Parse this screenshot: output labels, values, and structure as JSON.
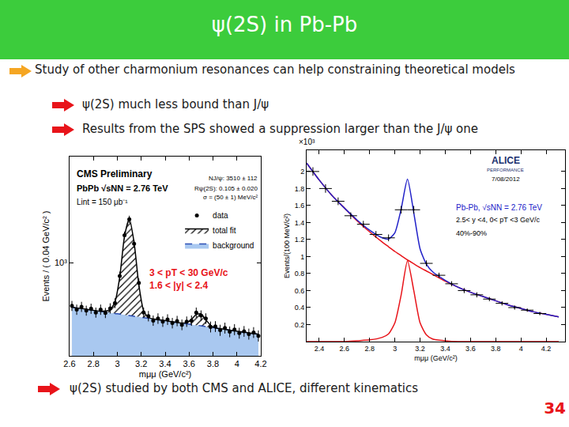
{
  "slide": {
    "title": "ψ(2S) in Pb-Pb",
    "bullets": [
      "Study of other charmonium resonances can help constraining theoretical models"
    ],
    "sub_bullets": [
      "ψ(2S) much less bound than J/ψ",
      "Results from the SPS showed a suppression larger than the J/ψ one"
    ],
    "conclusion": "ψ(2S) studied by both CMS and ALICE, different kinematics",
    "page_number": 34
  },
  "chart_data": [
    {
      "type": "scatter",
      "x_label": "mμμ (GeV/c²)",
      "y_label": "Events / ( 0.04 GeV/c² )",
      "log": "y",
      "legend": "right",
      "xlim": [
        2.6,
        4.2
      ],
      "xticks": [
        2.6,
        2.8,
        3,
        3.2,
        3.4,
        3.6,
        3.8,
        4,
        4.2
      ],
      "ylim": [
        500,
        2200
      ],
      "yticks": [
        {
          "value": 1000,
          "label": "10³"
        }
      ],
      "annotations": [
        {
          "text": "CMS Preliminary"
        },
        {
          "text": "PbPb √sNN = 2.76 TeV"
        },
        {
          "text": "Lint = 150 μb⁻¹"
        },
        {
          "text": "NJ/ψ: 3510 ± 112"
        },
        {
          "text": "Rψ(2S): 0.105 ± 0.020"
        },
        {
          "text": "σ = (50 ± 1) MeV/c²"
        },
        {
          "text": "3 < pT < 30 GeV/c",
          "color": "#e8141a"
        },
        {
          "text": "1.6 < |y| < 2.4",
          "color": "#e8141a"
        }
      ],
      "x": [
        2.62,
        2.66,
        2.7,
        2.74,
        2.78,
        2.82,
        2.86,
        2.9,
        2.94,
        2.98,
        3.02,
        3.06,
        3.1,
        3.14,
        3.18,
        3.22,
        3.26,
        3.3,
        3.34,
        3.38,
        3.42,
        3.46,
        3.5,
        3.54,
        3.58,
        3.62,
        3.66,
        3.7,
        3.74,
        3.78,
        3.82,
        3.86,
        3.9,
        3.94,
        3.98,
        4.02,
        4.06,
        4.1,
        4.14,
        4.18
      ],
      "series": [
        {
          "name": "background",
          "type": "area",
          "color": "#a9c8f0",
          "line_style": "dashed",
          "values": [
            718,
            714,
            711,
            707,
            703,
            700,
            696,
            693,
            689,
            685,
            682,
            678,
            675,
            671,
            668,
            664,
            661,
            658,
            654,
            651,
            648,
            644,
            641,
            638,
            634,
            631,
            628,
            625,
            621,
            618,
            615,
            612,
            609,
            605,
            602,
            599,
            596,
            593,
            590,
            587
          ]
        },
        {
          "name": "total fit",
          "type": "area",
          "color": "#000000",
          "line_style": "solid",
          "values": [
            718,
            714,
            711,
            707,
            703,
            700,
            696,
            698,
            704,
            746,
            898,
            1218,
            1385,
            1161,
            847,
            698,
            665,
            658,
            654,
            651,
            648,
            644,
            641,
            638,
            640,
            656,
            680,
            683,
            654,
            628,
            615,
            612,
            609,
            605,
            602,
            599,
            596,
            593,
            590,
            587
          ]
        },
        {
          "name": "data",
          "marker": "circle",
          "color": "#000000",
          "values": [
            725,
            705,
            720,
            700,
            710,
            690,
            705,
            688,
            712,
            740,
            905,
            1225,
            1380,
            1150,
            860,
            690,
            672,
            650,
            660,
            645,
            655,
            638,
            648,
            630,
            645,
            650,
            690,
            675,
            660,
            620,
            622,
            605,
            615,
            598,
            608,
            592,
            600,
            588,
            595,
            580
          ],
          "errors": [
            27,
            27,
            27,
            26,
            27,
            26,
            27,
            26,
            27,
            27,
            30,
            35,
            37,
            34,
            29,
            26,
            26,
            25,
            26,
            25,
            26,
            25,
            25,
            25,
            25,
            25,
            26,
            26,
            26,
            25,
            25,
            25,
            25,
            24,
            25,
            24,
            24,
            24,
            24,
            24
          ]
        }
      ]
    },
    {
      "type": "scatter",
      "x_label": "mμμ (GeV/c²)",
      "y_label": "Events/(100 MeV/c²)",
      "xlim": [
        2.3,
        4.35
      ],
      "xticks": [
        2.4,
        2.6,
        2.8,
        3,
        3.2,
        3.4,
        3.6,
        3.8,
        4,
        4.2
      ],
      "ylim": [
        0,
        2.25
      ],
      "yticks": [
        0.2,
        0.4,
        0.6,
        0.8,
        1,
        1.2,
        1.4,
        1.6,
        1.8,
        2
      ],
      "annotations": [
        {
          "text": "ALICE",
          "color": "#1b2f6e"
        },
        {
          "text": "PERFORMANCE",
          "color": "#1b2f6e"
        },
        {
          "text": "7/08/2012"
        },
        {
          "text": "Pb-Pb, √sNN = 2.76 TeV",
          "color": "#2020c8"
        },
        {
          "text": "2.5< y <4, 0< pT <3 GeV/c"
        },
        {
          "text": "40%-90%"
        },
        {
          "text": "×10³"
        }
      ],
      "series": [
        {
          "type": "line",
          "color": "#e8141a",
          "line_style": "solid",
          "x": [
            2.3,
            2.4,
            2.5,
            2.6,
            2.7,
            2.8,
            2.9,
            2.95,
            3,
            3.05,
            3.1,
            3.15,
            3.2,
            3.25,
            3.3,
            3.4,
            3.5,
            3.6,
            3.7,
            3.8,
            3.9,
            4,
            4.1,
            4.2,
            4.3
          ],
          "values": [
            2.1,
            1.9,
            1.72,
            1.57,
            1.42,
            1.29,
            1.17,
            1.115,
            1.06,
            1.01,
            0.96,
            0.915,
            0.87,
            0.83,
            0.79,
            0.71,
            0.64,
            0.58,
            0.53,
            0.48,
            0.43,
            0.39,
            0.35,
            0.32,
            0.29
          ]
        },
        {
          "type": "line",
          "color": "#e8141a",
          "line_style": "solid",
          "x": [
            2.3,
            2.4,
            2.5,
            2.6,
            2.7,
            2.8,
            2.9,
            2.95,
            3,
            3.05,
            3.1,
            3.15,
            3.2,
            3.25,
            3.3,
            3.4,
            3.5,
            3.6,
            3.7,
            3.8,
            3.9,
            4,
            4.1,
            4.2,
            4.3
          ],
          "values": [
            0,
            0,
            0,
            0,
            0.01,
            0.02,
            0.05,
            0.09,
            0.22,
            0.55,
            0.95,
            0.6,
            0.22,
            0.08,
            0.03,
            0.01,
            0,
            0,
            0,
            0,
            0,
            0,
            0,
            0,
            0
          ]
        },
        {
          "type": "line",
          "color": "#2020c8",
          "line_style": "solid",
          "x": [
            2.3,
            2.4,
            2.5,
            2.6,
            2.7,
            2.8,
            2.9,
            2.95,
            3,
            3.05,
            3.1,
            3.15,
            3.2,
            3.25,
            3.3,
            3.4,
            3.5,
            3.6,
            3.7,
            3.8,
            3.9,
            4,
            4.1,
            4.2,
            4.3
          ],
          "values": [
            2.1,
            1.9,
            1.72,
            1.57,
            1.43,
            1.31,
            1.22,
            1.205,
            1.28,
            1.56,
            1.91,
            1.515,
            1.09,
            0.91,
            0.82,
            0.72,
            0.64,
            0.58,
            0.53,
            0.48,
            0.43,
            0.39,
            0.35,
            0.32,
            0.29
          ]
        },
        {
          "marker": "point",
          "color": "#000000",
          "x": [
            2.35,
            2.45,
            2.55,
            2.65,
            2.75,
            2.85,
            2.95,
            3.05,
            3.15,
            3.25,
            3.35,
            3.45,
            3.55,
            3.65,
            3.75,
            3.85,
            3.95,
            4.05,
            4.15
          ],
          "values": [
            2.0,
            1.8,
            1.65,
            1.48,
            1.38,
            1.26,
            1.22,
            1.55,
            1.55,
            0.92,
            0.78,
            0.68,
            0.6,
            0.55,
            0.5,
            0.45,
            0.4,
            0.37,
            0.33
          ],
          "errors": [
            0.05,
            0.05,
            0.045,
            0.04,
            0.04,
            0.04,
            0.04,
            0.045,
            0.045,
            0.035,
            0.03,
            0.03,
            0.03,
            0.03,
            0.025,
            0.025,
            0.025,
            0.02,
            0.02
          ],
          "x_errors": [
            0.05,
            0.05,
            0.05,
            0.05,
            0.05,
            0.05,
            0.05,
            0.05,
            0.05,
            0.05,
            0.05,
            0.05,
            0.05,
            0.05,
            0.05,
            0.05,
            0.05,
            0.05,
            0.05
          ]
        }
      ]
    }
  ]
}
